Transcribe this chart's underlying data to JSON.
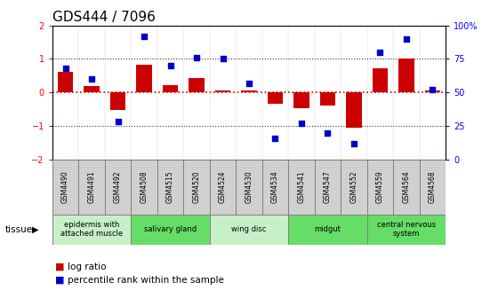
{
  "title": "GDS444 / 7096",
  "samples": [
    "GSM4490",
    "GSM4491",
    "GSM4492",
    "GSM4508",
    "GSM4515",
    "GSM4520",
    "GSM4524",
    "GSM4530",
    "GSM4534",
    "GSM4541",
    "GSM4547",
    "GSM4552",
    "GSM4559",
    "GSM4564",
    "GSM4568"
  ],
  "log_ratio": [
    0.62,
    0.18,
    -0.52,
    0.82,
    0.22,
    0.42,
    0.05,
    0.06,
    -0.35,
    -0.48,
    -0.4,
    -1.05,
    0.72,
    1.0,
    0.07
  ],
  "percentile": [
    68,
    60,
    28,
    92,
    70,
    76,
    75,
    57,
    16,
    27,
    20,
    12,
    80,
    90,
    52
  ],
  "tissue_groups": [
    {
      "label": "epidermis with\nattached muscle",
      "start": 0,
      "end": 3,
      "color": "#c8f0c8"
    },
    {
      "label": "salivary gland",
      "start": 3,
      "end": 6,
      "color": "#66dd66"
    },
    {
      "label": "wing disc",
      "start": 6,
      "end": 9,
      "color": "#c8f0c8"
    },
    {
      "label": "midgut",
      "start": 9,
      "end": 12,
      "color": "#66dd66"
    },
    {
      "label": "central nervous\nsystem",
      "start": 12,
      "end": 15,
      "color": "#66dd66"
    }
  ],
  "ylim": [
    -2.0,
    2.0
  ],
  "y2lim": [
    0,
    100
  ],
  "bar_color": "#cc0000",
  "dot_color": "#0000cc",
  "background_color": "#ffffff",
  "zero_color": "#cc0000",
  "dotted_color": "#333333",
  "sample_cell_color": "#d0d0d0",
  "title_fontsize": 11,
  "tick_fontsize": 7,
  "label_fontsize": 7.5
}
